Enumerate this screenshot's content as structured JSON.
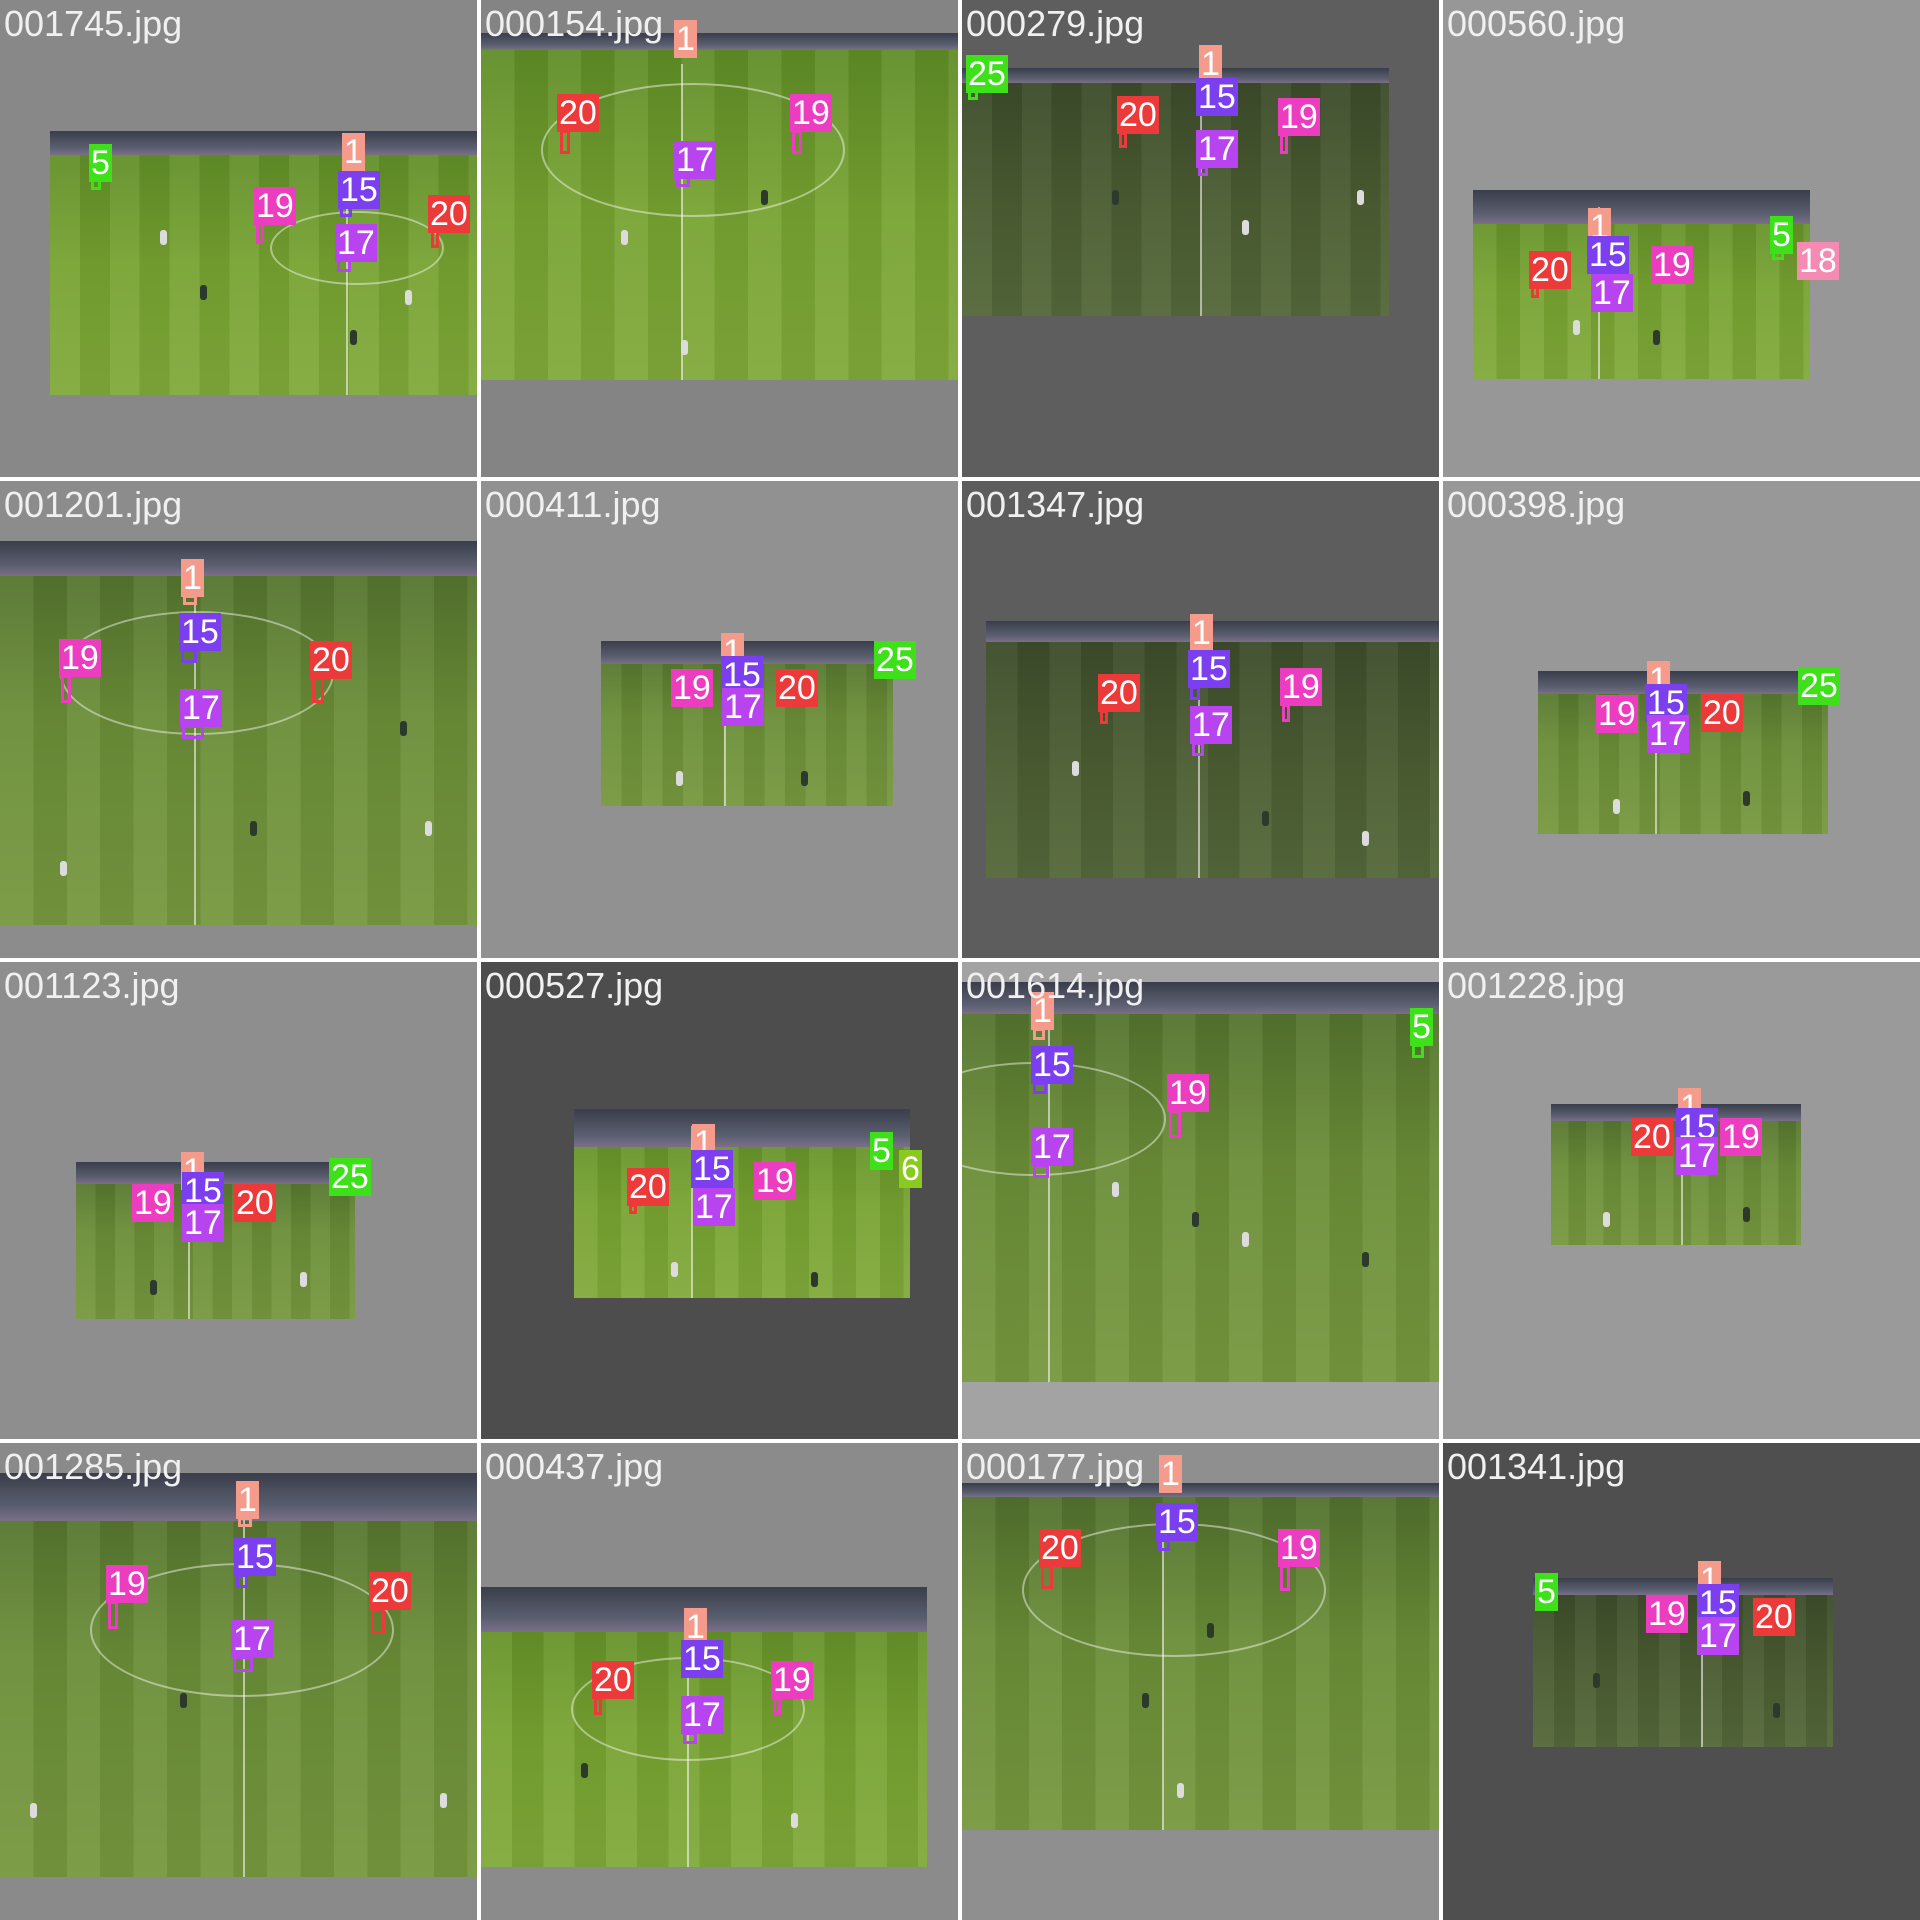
{
  "class_colors": {
    "1": "#f59b8c",
    "5": "#3ee01a",
    "6": "#8ac91e",
    "15": "#7b3ff0",
    "17": "#b844ef",
    "18": "#f58bb2",
    "19": "#ec3cbf",
    "20": "#ec3a3a",
    "25": "#3ee01a"
  },
  "tiles": [
    {
      "filename": "001745.jpg",
      "bg": "#888888",
      "tone": "bright",
      "labels": [
        "5",
        "1",
        "15",
        "19",
        "20",
        "17"
      ]
    },
    {
      "filename": "000154.jpg",
      "bg": "#848484",
      "tone": "bright",
      "labels": [
        "1",
        "20",
        "19",
        "17"
      ]
    },
    {
      "filename": "000279.jpg",
      "bg": "#5e5e5e",
      "tone": "dark",
      "labels": [
        "25",
        "1",
        "15",
        "20",
        "19",
        "17"
      ]
    },
    {
      "filename": "000560.jpg",
      "bg": "#979797",
      "tone": "bright",
      "labels": [
        "1",
        "15",
        "20",
        "19",
        "5",
        "18",
        "17"
      ]
    },
    {
      "filename": "001201.jpg",
      "bg": "#8c8c8c",
      "tone": "normal",
      "labels": [
        "1",
        "15",
        "19",
        "20",
        "17"
      ]
    },
    {
      "filename": "000411.jpg",
      "bg": "#919191",
      "tone": "normal",
      "labels": [
        "1",
        "15",
        "19",
        "20",
        "25",
        "17"
      ]
    },
    {
      "filename": "001347.jpg",
      "bg": "#5d5d5d",
      "tone": "dark",
      "labels": [
        "1",
        "15",
        "20",
        "19",
        "17"
      ]
    },
    {
      "filename": "000398.jpg",
      "bg": "#989898",
      "tone": "normal",
      "labels": [
        "1",
        "15",
        "19",
        "20",
        "25",
        "17"
      ]
    },
    {
      "filename": "001123.jpg",
      "bg": "#8e8e8e",
      "tone": "normal",
      "labels": [
        "1",
        "15",
        "19",
        "20",
        "25",
        "17"
      ]
    },
    {
      "filename": "000527.jpg",
      "bg": "#4d4d4d",
      "tone": "bright",
      "labels": [
        "1",
        "15",
        "20",
        "19",
        "5",
        "6",
        "17"
      ]
    },
    {
      "filename": "001614.jpg",
      "bg": "#a3a3a3",
      "tone": "normal",
      "labels": [
        "1",
        "5",
        "15",
        "19",
        "17"
      ]
    },
    {
      "filename": "001228.jpg",
      "bg": "#9a9a9a",
      "tone": "normal",
      "labels": [
        "1",
        "15",
        "20",
        "19",
        "17"
      ]
    },
    {
      "filename": "001285.jpg",
      "bg": "#8a8a8a",
      "tone": "normal",
      "labels": [
        "1",
        "15",
        "19",
        "20",
        "17"
      ]
    },
    {
      "filename": "000437.jpg",
      "bg": "#8b8b8b",
      "tone": "bright",
      "labels": [
        "1",
        "15",
        "20",
        "19",
        "17"
      ]
    },
    {
      "filename": "000177.jpg",
      "bg": "#8f8f8f",
      "tone": "normal",
      "labels": [
        "1",
        "15",
        "20",
        "19"
      ]
    },
    {
      "filename": "001341.jpg",
      "bg": "#4f4f4f",
      "tone": "dark",
      "labels": [
        "5",
        "1",
        "15",
        "19",
        "20",
        "17"
      ]
    }
  ]
}
